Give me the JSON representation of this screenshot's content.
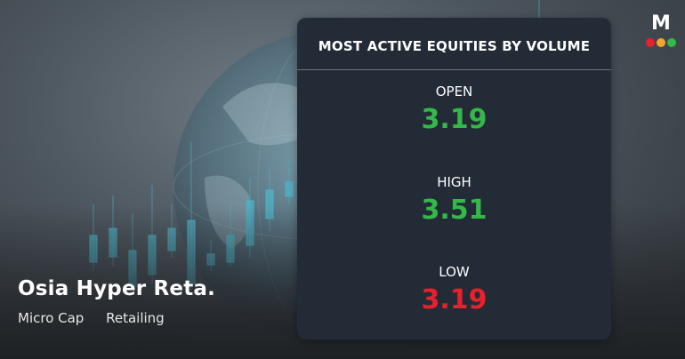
{
  "company": {
    "name": "Osia Hyper Reta.",
    "cap": "Micro Cap",
    "sector": "Retailing"
  },
  "card": {
    "title": "MOST ACTIVE EQUITIES BY VOLUME",
    "open": {
      "label": "OPEN",
      "value": "3.19"
    },
    "high": {
      "label": "HIGH",
      "value": "3.51"
    },
    "low": {
      "label": "LOW",
      "value": "3.19"
    }
  },
  "colors": {
    "up": "#34b84a",
    "down": "#e8212c",
    "card": "#232b36"
  },
  "logo": {
    "letter": "M",
    "dots": [
      "#e8212c",
      "#f2a62b",
      "#34b84a"
    ]
  },
  "icons": [
    "brand-logo-icon",
    "globe-graphic",
    "candlestick-graphic"
  ]
}
